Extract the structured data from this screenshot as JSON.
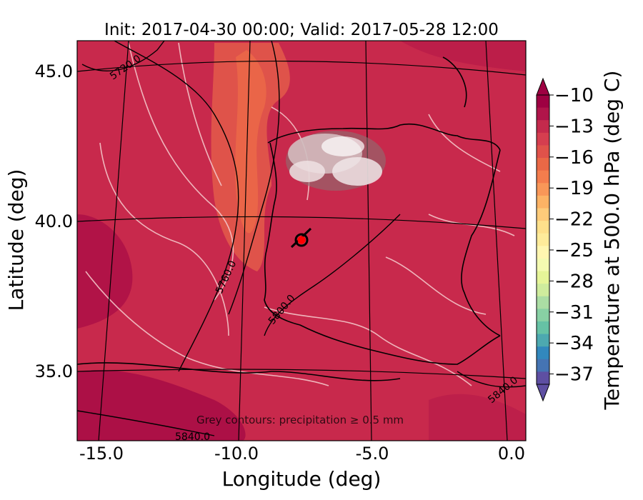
{
  "title": "Init: 2017-04-30 00:00; Valid: 2017-05-28 12:00",
  "xlabel": "Longitude (deg)",
  "ylabel": "Latitude (deg)",
  "x_ticks": [
    "-15.0",
    "-10.0",
    "-5.0",
    "0.0"
  ],
  "y_ticks": [
    "45.0",
    "40.0",
    "35.0"
  ],
  "colorbar": {
    "label": "Temperature at 500.0 hPa (deg C)",
    "ticks": [
      "−10",
      "−13",
      "−16",
      "−19",
      "−22",
      "−25",
      "−28",
      "−31",
      "−34",
      "−37"
    ],
    "colors_top_to_bottom": [
      "#9e0142",
      "#b0154a",
      "#c42a4c",
      "#d53e4f",
      "#e0524a",
      "#ea6846",
      "#f47d4d",
      "#f99758",
      "#fdb365",
      "#fecb7a",
      "#fee08b",
      "#feeb9a",
      "#fff6b0",
      "#f4fab1",
      "#e6f598",
      "#cfec9d",
      "#abdda4",
      "#88d0a4",
      "#66c2a5",
      "#4da9b0",
      "#3288bd",
      "#4574b3",
      "#5e4fa2"
    ]
  },
  "annotation": "Grey contours: precipitation ≥ 0.5 mm",
  "height_contour_labels": [
    "5720.0",
    "5760.0",
    "5800.0",
    "5840.0",
    "5840.0"
  ],
  "marker": {
    "label": "location",
    "color": "#ff0000"
  },
  "chart_data": {
    "type": "heatmap",
    "title": "Init: 2017-04-30 00:00; Valid: 2017-05-28 12:00",
    "xlabel": "Longitude (deg)",
    "ylabel": "Latitude (deg)",
    "xlim": [
      -16,
      0
    ],
    "ylim": [
      33,
      46
    ],
    "field": "Temperature at 500.0 hPa (deg C)",
    "colorbar_range": [
      -38,
      -10
    ],
    "dominant_value_range": [
      -14,
      -10
    ],
    "contour_field": "geopotential height (labelled)",
    "contour_levels": [
      5720.0,
      5760.0,
      5800.0,
      5840.0
    ]
  }
}
